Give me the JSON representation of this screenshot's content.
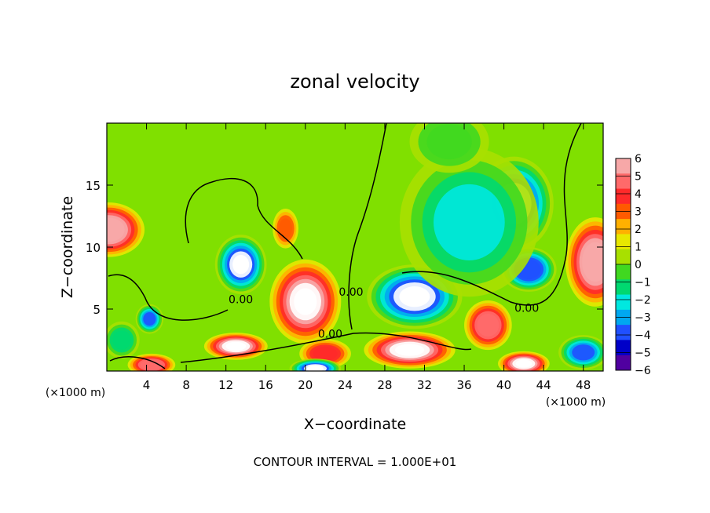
{
  "chart_data": {
    "type": "heatmap",
    "title": "zonal velocity",
    "xlabel": "X−coordinate",
    "ylabel": "Z−coordinate",
    "x_unit_left": "(×1000 m)",
    "x_unit_right": "(×1000 m)",
    "footer": "CONTOUR INTERVAL = 1.000E+01",
    "xlim": [
      0,
      50
    ],
    "ylim": [
      0,
      20
    ],
    "xticks": [
      4,
      8,
      12,
      16,
      20,
      24,
      28,
      32,
      36,
      40,
      44,
      48
    ],
    "yticks": [
      5,
      10,
      15
    ],
    "colorbar": {
      "ticks": [
        6,
        5,
        4,
        3,
        2,
        1,
        0,
        -1,
        -2,
        -3,
        -4,
        -5,
        -6
      ],
      "tick_labels": [
        "6",
        "5",
        "4",
        "3",
        "2",
        "1",
        "0",
        "−1",
        "−2",
        "−3",
        "−4",
        "−5",
        "−6"
      ],
      "colors": [
        "#f7a8a8",
        "#ff6a6a",
        "#ff2a2a",
        "#ff5a00",
        "#ffb000",
        "#e8e800",
        "#a8e000",
        "#40d820",
        "#00d870",
        "#00e8e0",
        "#00a8f0",
        "#2050ff",
        "#0000c8",
        "#5000a0"
      ]
    },
    "contour_labels": [
      {
        "text": "0.00",
        "x": 13.5,
        "z": 5.8
      },
      {
        "text": "0.00",
        "x": 22.5,
        "z": 3.0
      },
      {
        "text": "0.00",
        "x": 24.6,
        "z": 6.4
      },
      {
        "text": "0.00",
        "x": 42.3,
        "z": 5.1
      }
    ],
    "features": [
      {
        "kind": "positive",
        "x": 0.2,
        "z": 11.4,
        "rx": 3.6,
        "rz": 2.2,
        "v": 5.5
      },
      {
        "kind": "positive",
        "x": 49.2,
        "z": 8.8,
        "rx": 3.0,
        "rz": 3.6,
        "v": 5.5
      },
      {
        "kind": "positive",
        "x": 20.0,
        "z": 5.6,
        "rx": 3.6,
        "rz": 3.4,
        "v": 6
      },
      {
        "kind": "positive",
        "x": 13.0,
        "z": 2.0,
        "rx": 3.2,
        "rz": 1.1,
        "v": 6
      },
      {
        "kind": "positive",
        "x": 18.0,
        "z": 11.5,
        "rx": 1.3,
        "rz": 1.6,
        "v": 2.5
      },
      {
        "kind": "positive",
        "x": 38.4,
        "z": 3.7,
        "rx": 2.4,
        "rz": 2.0,
        "v": 5
      },
      {
        "kind": "positive",
        "x": 30.5,
        "z": 1.7,
        "rx": 4.6,
        "rz": 1.5,
        "v": 6
      },
      {
        "kind": "positive",
        "x": 42.0,
        "z": 0.6,
        "rx": 2.6,
        "rz": 1.0,
        "v": 6
      },
      {
        "kind": "positive",
        "x": 4.5,
        "z": 0.5,
        "rx": 2.4,
        "rz": 0.9,
        "v": 5
      },
      {
        "kind": "positive",
        "x": 22.0,
        "z": 1.4,
        "rx": 2.6,
        "rz": 1.2,
        "v": 4
      },
      {
        "kind": "negative",
        "x": 41.0,
        "z": 13.5,
        "rx": 4.0,
        "rz": 3.8,
        "v": -6
      },
      {
        "kind": "negative",
        "x": 31.0,
        "z": 6.0,
        "rx": 4.8,
        "rz": 2.6,
        "v": -6
      },
      {
        "kind": "negative",
        "x": 13.5,
        "z": 8.6,
        "rx": 2.6,
        "rz": 2.4,
        "v": -6
      },
      {
        "kind": "negative",
        "x": 42.5,
        "z": 8.2,
        "rx": 2.8,
        "rz": 1.8,
        "v": -5.5
      },
      {
        "kind": "negative",
        "x": 4.3,
        "z": 4.2,
        "rx": 1.4,
        "rz": 1.2,
        "v": -5
      },
      {
        "kind": "negative",
        "x": 36.5,
        "z": 12.0,
        "rx": 7.0,
        "rz": 6.0,
        "v": -3
      },
      {
        "kind": "negative",
        "x": 48.0,
        "z": 1.5,
        "rx": 2.5,
        "rz": 1.4,
        "v": -5
      },
      {
        "kind": "negative",
        "x": 21.0,
        "z": 0.2,
        "rx": 2.6,
        "rz": 0.8,
        "v": -6
      },
      {
        "kind": "negative",
        "x": 34.5,
        "z": 18.5,
        "rx": 4.0,
        "rz": 2.5,
        "v": -1.8
      },
      {
        "kind": "negative",
        "x": 1.5,
        "z": 2.5,
        "rx": 1.8,
        "rz": 1.5,
        "v": -2.5
      }
    ]
  }
}
